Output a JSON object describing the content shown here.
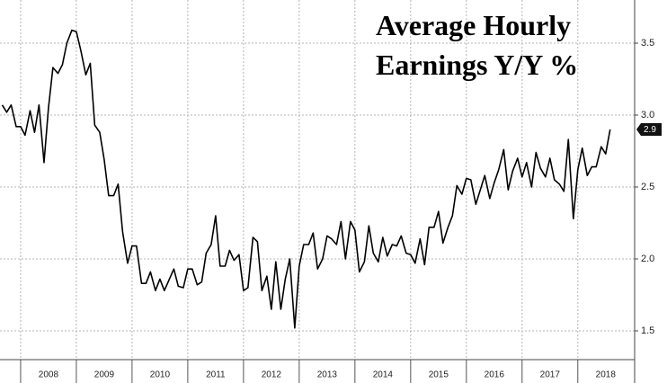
{
  "chart_data": {
    "type": "line",
    "title": "Average Hourly Earnings Y/Y %",
    "color": "#000000",
    "grid": true,
    "xlim": [
      2007.63,
      2019.02
    ],
    "xticks": [
      2008,
      2009,
      2010,
      2011,
      2012,
      2013,
      2014,
      2015,
      2016,
      2017,
      2018
    ],
    "ylim": [
      1.3,
      3.8
    ],
    "yticks": [
      1.5,
      {
        "value": 2,
        "label": "2.0"
      },
      2.5,
      {
        "value": 3,
        "label": "3.0"
      },
      3.5
    ],
    "x": [
      2007.67,
      2007.75,
      2007.83,
      2007.92,
      2008,
      2008.08,
      2008.17,
      2008.25,
      2008.33,
      2008.42,
      2008.5,
      2008.58,
      2008.67,
      2008.75,
      2008.83,
      2008.92,
      2009,
      2009.08,
      2009.17,
      2009.25,
      2009.33,
      2009.42,
      2009.5,
      2009.58,
      2009.67,
      2009.75,
      2009.83,
      2009.92,
      2010,
      2010.08,
      2010.17,
      2010.25,
      2010.33,
      2010.42,
      2010.5,
      2010.58,
      2010.67,
      2010.75,
      2010.83,
      2010.92,
      2011,
      2011.08,
      2011.17,
      2011.25,
      2011.33,
      2011.42,
      2011.5,
      2011.58,
      2011.67,
      2011.75,
      2011.83,
      2011.92,
      2012,
      2012.08,
      2012.17,
      2012.25,
      2012.33,
      2012.42,
      2012.5,
      2012.58,
      2012.67,
      2012.75,
      2012.83,
      2012.92,
      2013,
      2013.08,
      2013.17,
      2013.25,
      2013.33,
      2013.42,
      2013.5,
      2013.58,
      2013.67,
      2013.75,
      2013.83,
      2013.92,
      2014,
      2014.08,
      2014.17,
      2014.25,
      2014.33,
      2014.42,
      2014.5,
      2014.58,
      2014.67,
      2014.75,
      2014.83,
      2014.92,
      2015,
      2015.08,
      2015.17,
      2015.25,
      2015.33,
      2015.42,
      2015.5,
      2015.58,
      2015.67,
      2015.75,
      2015.83,
      2015.92,
      2016,
      2016.08,
      2016.17,
      2016.25,
      2016.33,
      2016.42,
      2016.5,
      2016.58,
      2016.67,
      2016.75,
      2016.83,
      2016.92,
      2017,
      2017.08,
      2017.17,
      2017.25,
      2017.33,
      2017.42,
      2017.5,
      2017.58,
      2017.67,
      2017.75,
      2017.83,
      2017.92,
      2018,
      2018.08,
      2018.17,
      2018.25,
      2018.33,
      2018.42,
      2018.5,
      2018.58
    ],
    "values": [
      3.07,
      3.02,
      3.07,
      2.92,
      2.92,
      2.86,
      3.03,
      2.88,
      3.07,
      2.67,
      3.05,
      3.33,
      3.29,
      3.35,
      3.5,
      3.59,
      3.58,
      3.45,
      3.28,
      3.36,
      2.93,
      2.88,
      2.69,
      2.44,
      2.44,
      2.52,
      2.19,
      1.97,
      2.09,
      2.09,
      1.83,
      1.83,
      1.91,
      1.78,
      1.86,
      1.78,
      1.86,
      1.93,
      1.81,
      1.8,
      1.93,
      1.93,
      1.82,
      1.84,
      2.04,
      2.1,
      2.3,
      1.95,
      1.95,
      2.06,
      1.99,
      2.03,
      1.78,
      1.8,
      2.15,
      2.12,
      1.78,
      1.88,
      1.65,
      1.98,
      1.65,
      1.86,
      2.0,
      1.52,
      1.95,
      2.1,
      2.1,
      2.18,
      1.93,
      2.0,
      2.16,
      2.14,
      2.1,
      2.26,
      2.0,
      2.26,
      2.2,
      1.91,
      1.98,
      2.23,
      2.04,
      1.98,
      2.15,
      2.02,
      2.1,
      2.09,
      2.16,
      2.04,
      2.03,
      1.97,
      2.14,
      1.96,
      2.22,
      2.22,
      2.33,
      2.11,
      2.22,
      2.3,
      2.51,
      2.45,
      2.56,
      2.55,
      2.38,
      2.48,
      2.58,
      2.42,
      2.53,
      2.62,
      2.76,
      2.48,
      2.61,
      2.7,
      2.57,
      2.67,
      2.5,
      2.74,
      2.63,
      2.57,
      2.7,
      2.55,
      2.52,
      2.47,
      2.83,
      2.28,
      2.62,
      2.77,
      2.58,
      2.64,
      2.64,
      2.78,
      2.73,
      2.9
    ]
  }
}
